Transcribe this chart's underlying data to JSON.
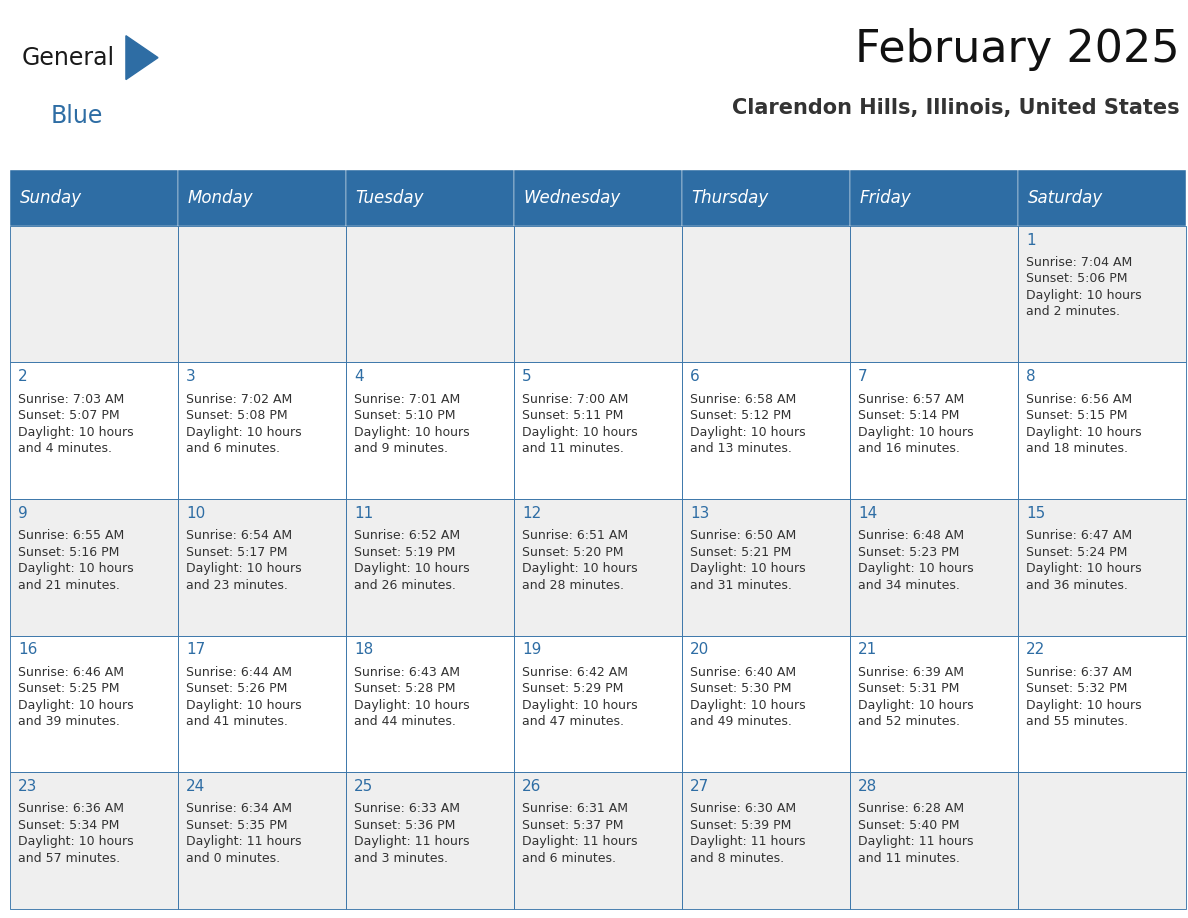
{
  "title": "February 2025",
  "subtitle": "Clarendon Hills, Illinois, United States",
  "header_bg": "#2E6DA4",
  "header_text_color": "#FFFFFF",
  "cell_bg_light": "#EFEFEF",
  "cell_bg_white": "#FFFFFF",
  "border_color": "#2E6DA4",
  "text_color": "#333333",
  "day_num_color": "#2E6DA4",
  "days_of_week": [
    "Sunday",
    "Monday",
    "Tuesday",
    "Wednesday",
    "Thursday",
    "Friday",
    "Saturday"
  ],
  "calendar_data": [
    [
      {
        "day": "",
        "info": ""
      },
      {
        "day": "",
        "info": ""
      },
      {
        "day": "",
        "info": ""
      },
      {
        "day": "",
        "info": ""
      },
      {
        "day": "",
        "info": ""
      },
      {
        "day": "",
        "info": ""
      },
      {
        "day": "1",
        "info": "Sunrise: 7:04 AM\nSunset: 5:06 PM\nDaylight: 10 hours\nand 2 minutes."
      }
    ],
    [
      {
        "day": "2",
        "info": "Sunrise: 7:03 AM\nSunset: 5:07 PM\nDaylight: 10 hours\nand 4 minutes."
      },
      {
        "day": "3",
        "info": "Sunrise: 7:02 AM\nSunset: 5:08 PM\nDaylight: 10 hours\nand 6 minutes."
      },
      {
        "day": "4",
        "info": "Sunrise: 7:01 AM\nSunset: 5:10 PM\nDaylight: 10 hours\nand 9 minutes."
      },
      {
        "day": "5",
        "info": "Sunrise: 7:00 AM\nSunset: 5:11 PM\nDaylight: 10 hours\nand 11 minutes."
      },
      {
        "day": "6",
        "info": "Sunrise: 6:58 AM\nSunset: 5:12 PM\nDaylight: 10 hours\nand 13 minutes."
      },
      {
        "day": "7",
        "info": "Sunrise: 6:57 AM\nSunset: 5:14 PM\nDaylight: 10 hours\nand 16 minutes."
      },
      {
        "day": "8",
        "info": "Sunrise: 6:56 AM\nSunset: 5:15 PM\nDaylight: 10 hours\nand 18 minutes."
      }
    ],
    [
      {
        "day": "9",
        "info": "Sunrise: 6:55 AM\nSunset: 5:16 PM\nDaylight: 10 hours\nand 21 minutes."
      },
      {
        "day": "10",
        "info": "Sunrise: 6:54 AM\nSunset: 5:17 PM\nDaylight: 10 hours\nand 23 minutes."
      },
      {
        "day": "11",
        "info": "Sunrise: 6:52 AM\nSunset: 5:19 PM\nDaylight: 10 hours\nand 26 minutes."
      },
      {
        "day": "12",
        "info": "Sunrise: 6:51 AM\nSunset: 5:20 PM\nDaylight: 10 hours\nand 28 minutes."
      },
      {
        "day": "13",
        "info": "Sunrise: 6:50 AM\nSunset: 5:21 PM\nDaylight: 10 hours\nand 31 minutes."
      },
      {
        "day": "14",
        "info": "Sunrise: 6:48 AM\nSunset: 5:23 PM\nDaylight: 10 hours\nand 34 minutes."
      },
      {
        "day": "15",
        "info": "Sunrise: 6:47 AM\nSunset: 5:24 PM\nDaylight: 10 hours\nand 36 minutes."
      }
    ],
    [
      {
        "day": "16",
        "info": "Sunrise: 6:46 AM\nSunset: 5:25 PM\nDaylight: 10 hours\nand 39 minutes."
      },
      {
        "day": "17",
        "info": "Sunrise: 6:44 AM\nSunset: 5:26 PM\nDaylight: 10 hours\nand 41 minutes."
      },
      {
        "day": "18",
        "info": "Sunrise: 6:43 AM\nSunset: 5:28 PM\nDaylight: 10 hours\nand 44 minutes."
      },
      {
        "day": "19",
        "info": "Sunrise: 6:42 AM\nSunset: 5:29 PM\nDaylight: 10 hours\nand 47 minutes."
      },
      {
        "day": "20",
        "info": "Sunrise: 6:40 AM\nSunset: 5:30 PM\nDaylight: 10 hours\nand 49 minutes."
      },
      {
        "day": "21",
        "info": "Sunrise: 6:39 AM\nSunset: 5:31 PM\nDaylight: 10 hours\nand 52 minutes."
      },
      {
        "day": "22",
        "info": "Sunrise: 6:37 AM\nSunset: 5:32 PM\nDaylight: 10 hours\nand 55 minutes."
      }
    ],
    [
      {
        "day": "23",
        "info": "Sunrise: 6:36 AM\nSunset: 5:34 PM\nDaylight: 10 hours\nand 57 minutes."
      },
      {
        "day": "24",
        "info": "Sunrise: 6:34 AM\nSunset: 5:35 PM\nDaylight: 11 hours\nand 0 minutes."
      },
      {
        "day": "25",
        "info": "Sunrise: 6:33 AM\nSunset: 5:36 PM\nDaylight: 11 hours\nand 3 minutes."
      },
      {
        "day": "26",
        "info": "Sunrise: 6:31 AM\nSunset: 5:37 PM\nDaylight: 11 hours\nand 6 minutes."
      },
      {
        "day": "27",
        "info": "Sunrise: 6:30 AM\nSunset: 5:39 PM\nDaylight: 11 hours\nand 8 minutes."
      },
      {
        "day": "28",
        "info": "Sunrise: 6:28 AM\nSunset: 5:40 PM\nDaylight: 11 hours\nand 11 minutes."
      },
      {
        "day": "",
        "info": ""
      }
    ]
  ],
  "title_fontsize": 32,
  "subtitle_fontsize": 15,
  "header_fontsize": 12,
  "day_num_fontsize": 11,
  "info_fontsize": 9,
  "logo_general_fontsize": 17,
  "logo_blue_fontsize": 17
}
